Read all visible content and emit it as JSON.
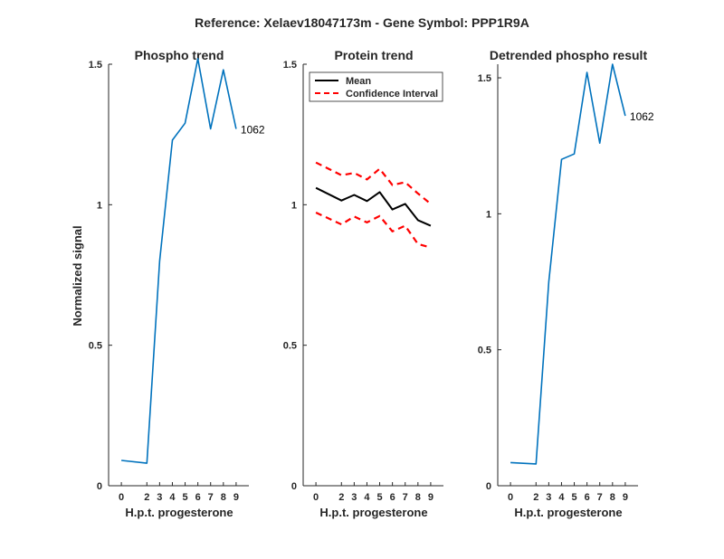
{
  "figure": {
    "title": "Reference:  Xelaev18047173m - Gene Symbol:  PPP1R9A"
  },
  "colors": {
    "series_blue": "#0072bd",
    "mean": "#000000",
    "ci": "#ff0000",
    "axis": "#262626"
  },
  "chart_data": [
    {
      "type": "line",
      "title": "Phospho trend",
      "xlabel": "H.p.t. progesterone",
      "ylabel": "Normalized signal",
      "xticks": [
        0,
        2,
        3,
        4,
        5,
        6,
        7,
        8,
        9
      ],
      "yticks": [
        0,
        0.5,
        1,
        1.5
      ],
      "ytick_labels": [
        "0",
        "0.5",
        "1",
        "1.5"
      ],
      "ylim": [
        0,
        1.5
      ],
      "grid": false,
      "series": [
        {
          "color": "#0072bd",
          "style": "solid",
          "x": [
            0,
            2,
            3,
            4,
            5,
            6,
            7,
            8,
            9
          ],
          "values": [
            0.09,
            0.08,
            0.8,
            1.23,
            1.29,
            1.52,
            1.27,
            1.48,
            1.27
          ]
        }
      ],
      "annotation": {
        "text": "1062",
        "x": 9,
        "y": 1.27
      }
    },
    {
      "type": "line",
      "title": "Protein trend",
      "xlabel": "H.p.t. progesterone",
      "ylabel": "",
      "xticks": [
        0,
        2,
        3,
        4,
        5,
        6,
        7,
        8,
        9
      ],
      "yticks": [
        0,
        0.5,
        1,
        1.5
      ],
      "ytick_labels": [
        "0",
        "0.5",
        "1",
        "1.5"
      ],
      "ylim": [
        0,
        1.5
      ],
      "grid": false,
      "legend": {
        "position": "top-left",
        "entries": [
          "Mean",
          "Confidence Interval"
        ]
      },
      "series": [
        {
          "name": "Mean",
          "color": "#000000",
          "style": "solid",
          "x": [
            0,
            2,
            3,
            4,
            5,
            6,
            7,
            8,
            9
          ],
          "values": [
            1.06,
            1.015,
            1.035,
            1.013,
            1.045,
            0.983,
            1.003,
            0.945,
            0.925
          ]
        },
        {
          "name": "Confidence Interval",
          "color": "#ff0000",
          "style": "dashed",
          "x": [
            0,
            2,
            3,
            4,
            5,
            6,
            7,
            8,
            9
          ],
          "values": [
            1.15,
            1.105,
            1.113,
            1.09,
            1.128,
            1.07,
            1.08,
            1.04,
            1.003
          ]
        },
        {
          "name": "Confidence Interval",
          "color": "#ff0000",
          "style": "dashed",
          "x": [
            0,
            2,
            3,
            4,
            5,
            6,
            7,
            8,
            9
          ],
          "values": [
            0.972,
            0.93,
            0.958,
            0.937,
            0.96,
            0.905,
            0.925,
            0.86,
            0.848
          ]
        }
      ]
    },
    {
      "type": "line",
      "title": "Detrended phospho result",
      "xlabel": "H.p.t. progesterone",
      "ylabel": "",
      "xticks": [
        0,
        2,
        3,
        4,
        5,
        6,
        7,
        8,
        9
      ],
      "yticks": [
        0,
        0.5,
        1,
        1.5
      ],
      "ytick_labels": [
        "0",
        "0.5",
        "1",
        "1.5"
      ],
      "ylim": [
        0,
        1.55
      ],
      "grid": false,
      "series": [
        {
          "color": "#0072bd",
          "style": "solid",
          "x": [
            0,
            2,
            3,
            4,
            5,
            6,
            7,
            8,
            9
          ],
          "values": [
            0.085,
            0.08,
            0.75,
            1.2,
            1.22,
            1.52,
            1.26,
            1.55,
            1.36
          ]
        }
      ],
      "annotation": {
        "text": "1062",
        "x": 9,
        "y": 1.36
      }
    }
  ]
}
